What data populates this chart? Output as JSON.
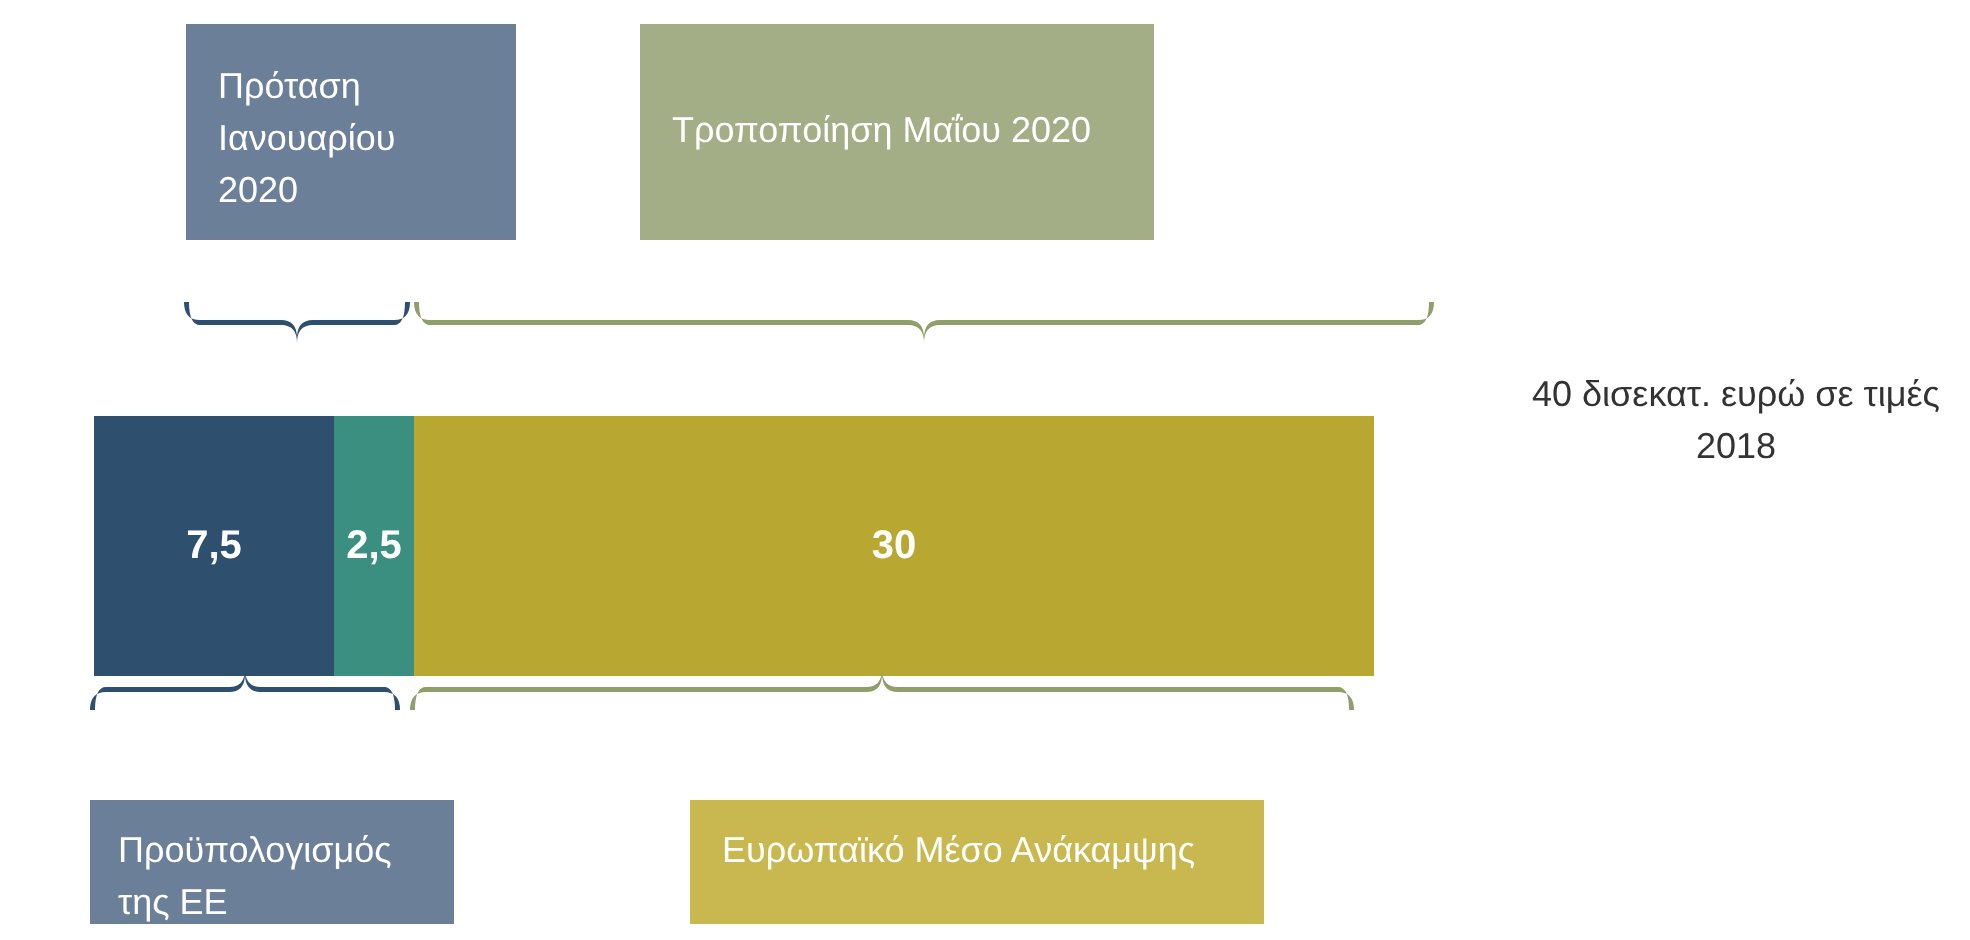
{
  "chart_data": {
    "type": "bar",
    "orientation": "horizontal",
    "stacked": true,
    "categories": [
      null
    ],
    "series": [
      {
        "color": "#2e4f6e",
        "values": [
          7.5
        ],
        "value_labels": [
          "7,5"
        ]
      },
      {
        "color": "#3a8f80",
        "values": [
          2.5
        ],
        "value_labels": [
          "2,5"
        ]
      },
      {
        "color": "#b8a832",
        "values": [
          30
        ],
        "value_labels": [
          "30"
        ]
      }
    ],
    "annotations": [
      "Πρόταση Ιανουαρίου 2020",
      "Τροποποίηση Μαΐου 2020",
      "40 δισεκατ. ευρώ σε τιμές 2018",
      "Προϋπολογισμός της ΕΕ",
      "Ευρωπαϊκό Μέσο Ανάκαμψης"
    ]
  }
}
